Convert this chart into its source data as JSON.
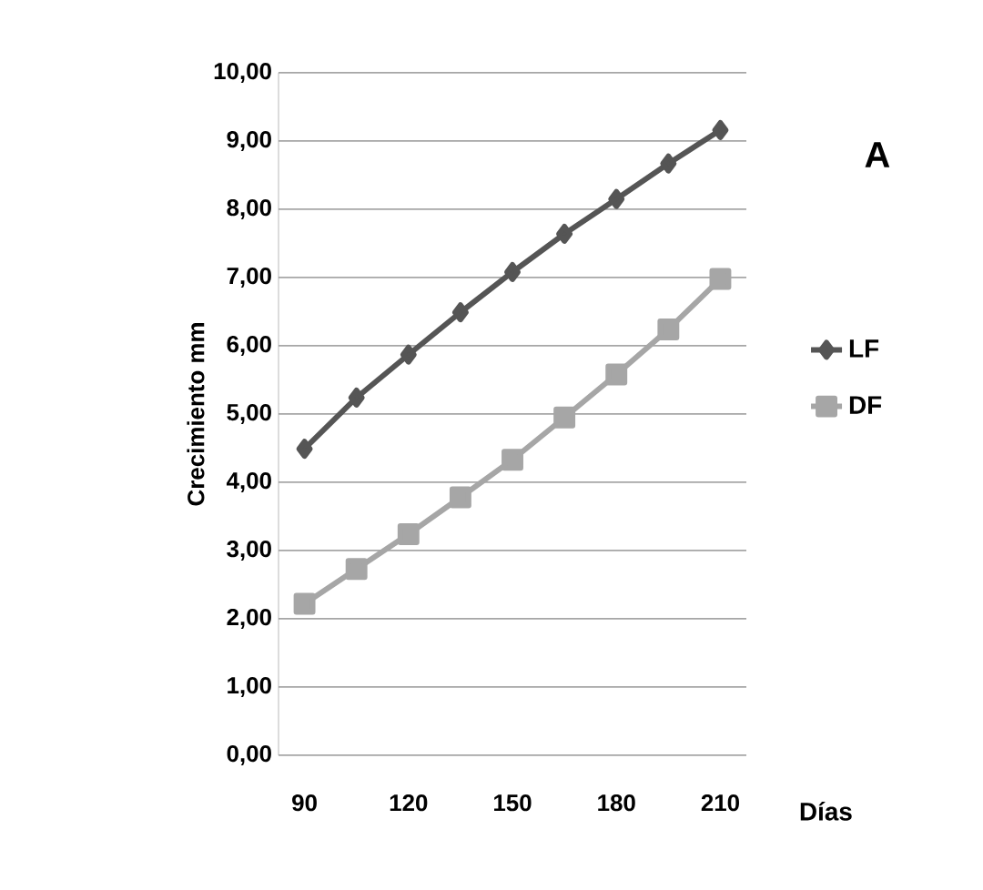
{
  "chart_data": {
    "type": "line",
    "categories": [
      "90",
      null,
      "120",
      null,
      "150",
      null,
      "180",
      null,
      "210"
    ],
    "series": [
      {
        "name": "LF",
        "color": "#555555",
        "marker": "diamond",
        "values": [
          4.49,
          5.24,
          5.87,
          6.49,
          7.08,
          7.64,
          8.15,
          8.67,
          9.16
        ]
      },
      {
        "name": "DF",
        "color": "#a6a6a6",
        "marker": "square",
        "values": [
          2.22,
          2.73,
          3.24,
          3.78,
          4.33,
          4.95,
          5.58,
          6.24,
          6.98
        ]
      }
    ],
    "xlabel": "Días",
    "ylabel": "Crecimiento mm",
    "ylim": [
      0,
      10
    ],
    "yticks": [
      {
        "value": 0,
        "label": "0,00"
      },
      {
        "value": 1,
        "label": "1,00"
      },
      {
        "value": 2,
        "label": "2,00"
      },
      {
        "value": 3,
        "label": "3,00"
      },
      {
        "value": 4,
        "label": "4,00"
      },
      {
        "value": 5,
        "label": "5,00"
      },
      {
        "value": 6,
        "label": "6,00"
      },
      {
        "value": 7,
        "label": "7,00"
      },
      {
        "value": 8,
        "label": "8,00"
      },
      {
        "value": 9,
        "label": "9,00"
      },
      {
        "value": 10,
        "label": "10,00"
      }
    ],
    "grid": "y",
    "legend": "right",
    "line_style": "solid",
    "annotations": [
      "A"
    ]
  }
}
